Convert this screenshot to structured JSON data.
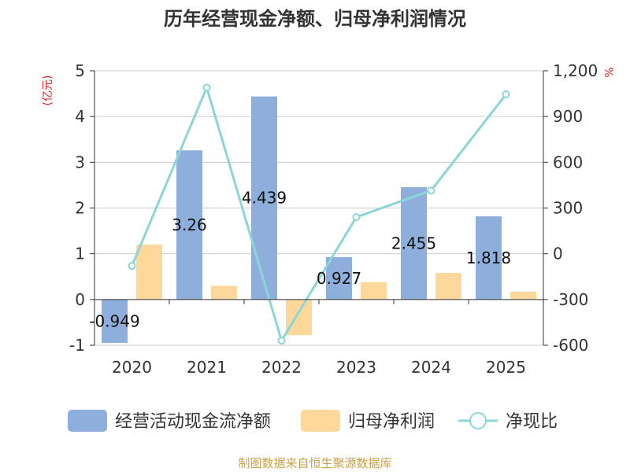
{
  "chart_data": {
    "type": "bar",
    "title": "历年经营现金净额、归母净利润情况",
    "categories": [
      "2020",
      "2021",
      "2022",
      "2023",
      "2024",
      "2025"
    ],
    "y_left": {
      "unit_label": "(亿元)",
      "ticks": [
        "-1",
        "0",
        "1",
        "2",
        "3",
        "4",
        "5"
      ],
      "min": -1,
      "max": 5
    },
    "y_right": {
      "unit_label": "%",
      "ticks": [
        "-600",
        "-300",
        "0",
        "300",
        "600",
        "900",
        "1,200"
      ],
      "min": -600,
      "max": 1200
    },
    "series": [
      {
        "name": "经营活动现金流净额",
        "type": "bar",
        "axis": "left",
        "color": "#8eaedc",
        "values": [
          -0.949,
          3.26,
          4.439,
          0.927,
          2.455,
          1.818
        ],
        "labels": [
          "-0.949",
          "3.26",
          "4.439",
          "0.927",
          "2.455",
          "1.818"
        ]
      },
      {
        "name": "归母净利润",
        "type": "bar",
        "axis": "left",
        "color": "#fdd89a",
        "values": [
          1.2,
          0.3,
          -0.78,
          0.38,
          0.58,
          0.17
        ]
      },
      {
        "name": "净现比",
        "type": "line",
        "axis": "right",
        "color": "#8cd5d8",
        "values": [
          -80,
          1090,
          -570,
          240,
          415,
          1045
        ]
      }
    ],
    "legend_position": "bottom",
    "grid": true
  },
  "footer": {
    "source": "制图数据来自恒生聚源数据库"
  }
}
